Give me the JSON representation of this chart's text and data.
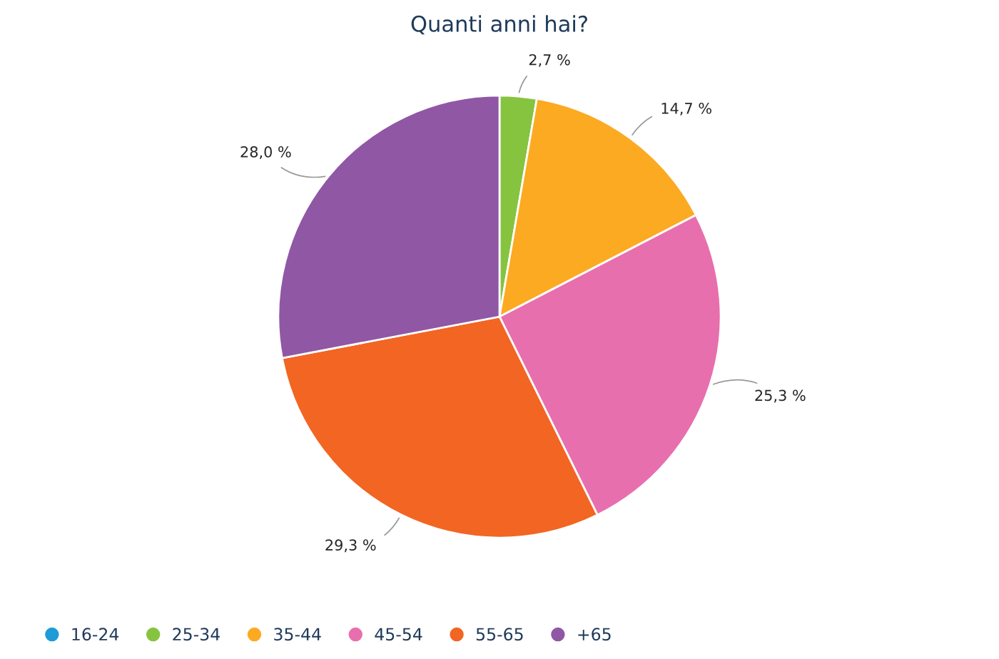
{
  "chart_data": {
    "type": "pie",
    "title": "Quanti anni hai?",
    "categories": [
      "16-24",
      "25-34",
      "35-44",
      "45-54",
      "55-65",
      "+65"
    ],
    "values": [
      0,
      2.7,
      14.7,
      25.3,
      29.3,
      28.0
    ],
    "value_labels": [
      null,
      "2,7 %",
      "14,7 %",
      "25,3 %",
      "29,3 %",
      "28,0 %"
    ],
    "colors": [
      "#1f9bd7",
      "#86c440",
      "#fcaa22",
      "#e86fad",
      "#f26522",
      "#9057a4"
    ],
    "legend": "bottom left"
  }
}
